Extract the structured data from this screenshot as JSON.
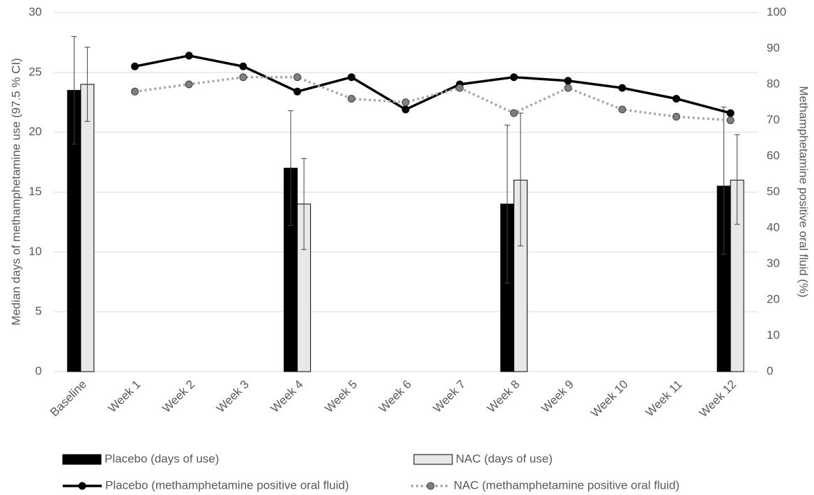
{
  "chart_data": {
    "type": "bar",
    "ylabel": "Median days of methamphetamine use (97.5 % CI)",
    "y2label": "Methamphetamine positive oral fluid (%)",
    "categories": [
      "Baseline",
      "Week 1",
      "Week 2",
      "Week 3",
      "Week 4",
      "Week 5",
      "Week 6",
      "Week 7",
      "Week 8",
      "Week 9",
      "Week 10",
      "Week 11",
      "Week 12"
    ],
    "series": [
      {
        "name": "Placebo (days of use)",
        "type": "bar",
        "color": "#000000",
        "values": [
          23.5,
          null,
          null,
          null,
          17,
          null,
          null,
          null,
          14,
          null,
          null,
          null,
          15.5
        ],
        "ci_low": [
          19,
          null,
          null,
          null,
          12.2,
          null,
          null,
          null,
          7.4,
          null,
          null,
          null,
          9.8
        ],
        "ci_high": [
          28,
          null,
          null,
          null,
          21.8,
          null,
          null,
          null,
          20.6,
          null,
          null,
          null,
          22.1
        ]
      },
      {
        "name": "NAC (days of use)",
        "type": "bar",
        "color": "#e8e8e8",
        "values": [
          24,
          null,
          null,
          null,
          14,
          null,
          null,
          null,
          16,
          null,
          null,
          null,
          16
        ],
        "ci_low": [
          20.9,
          null,
          null,
          null,
          10.2,
          null,
          null,
          null,
          10.5,
          null,
          null,
          null,
          12.3
        ],
        "ci_high": [
          27.1,
          null,
          null,
          null,
          17.8,
          null,
          null,
          null,
          21.6,
          null,
          null,
          null,
          19.8
        ]
      },
      {
        "name": "Placebo (methamphetamine positive oral fluid)",
        "type": "line",
        "axis": "y2",
        "color": "#000000",
        "style": "solid",
        "values": [
          null,
          85,
          88,
          85,
          78,
          82,
          73,
          80,
          82,
          81,
          79,
          76,
          72
        ]
      },
      {
        "name": "NAC (methamphetamine positive oral fluid)",
        "type": "line",
        "axis": "y2",
        "color": "#a6a6a6",
        "style": "dotted",
        "values": [
          null,
          78,
          80,
          82,
          82,
          76,
          75,
          79,
          72,
          79,
          73,
          71,
          70
        ]
      }
    ],
    "ylim": [
      0,
      30
    ],
    "yticks": [
      0,
      5,
      10,
      15,
      20,
      25,
      30
    ],
    "y2lim": [
      0,
      100
    ],
    "y2ticks": [
      0,
      10,
      20,
      30,
      40,
      50,
      60,
      70,
      80,
      90,
      100
    ],
    "grid": true
  }
}
